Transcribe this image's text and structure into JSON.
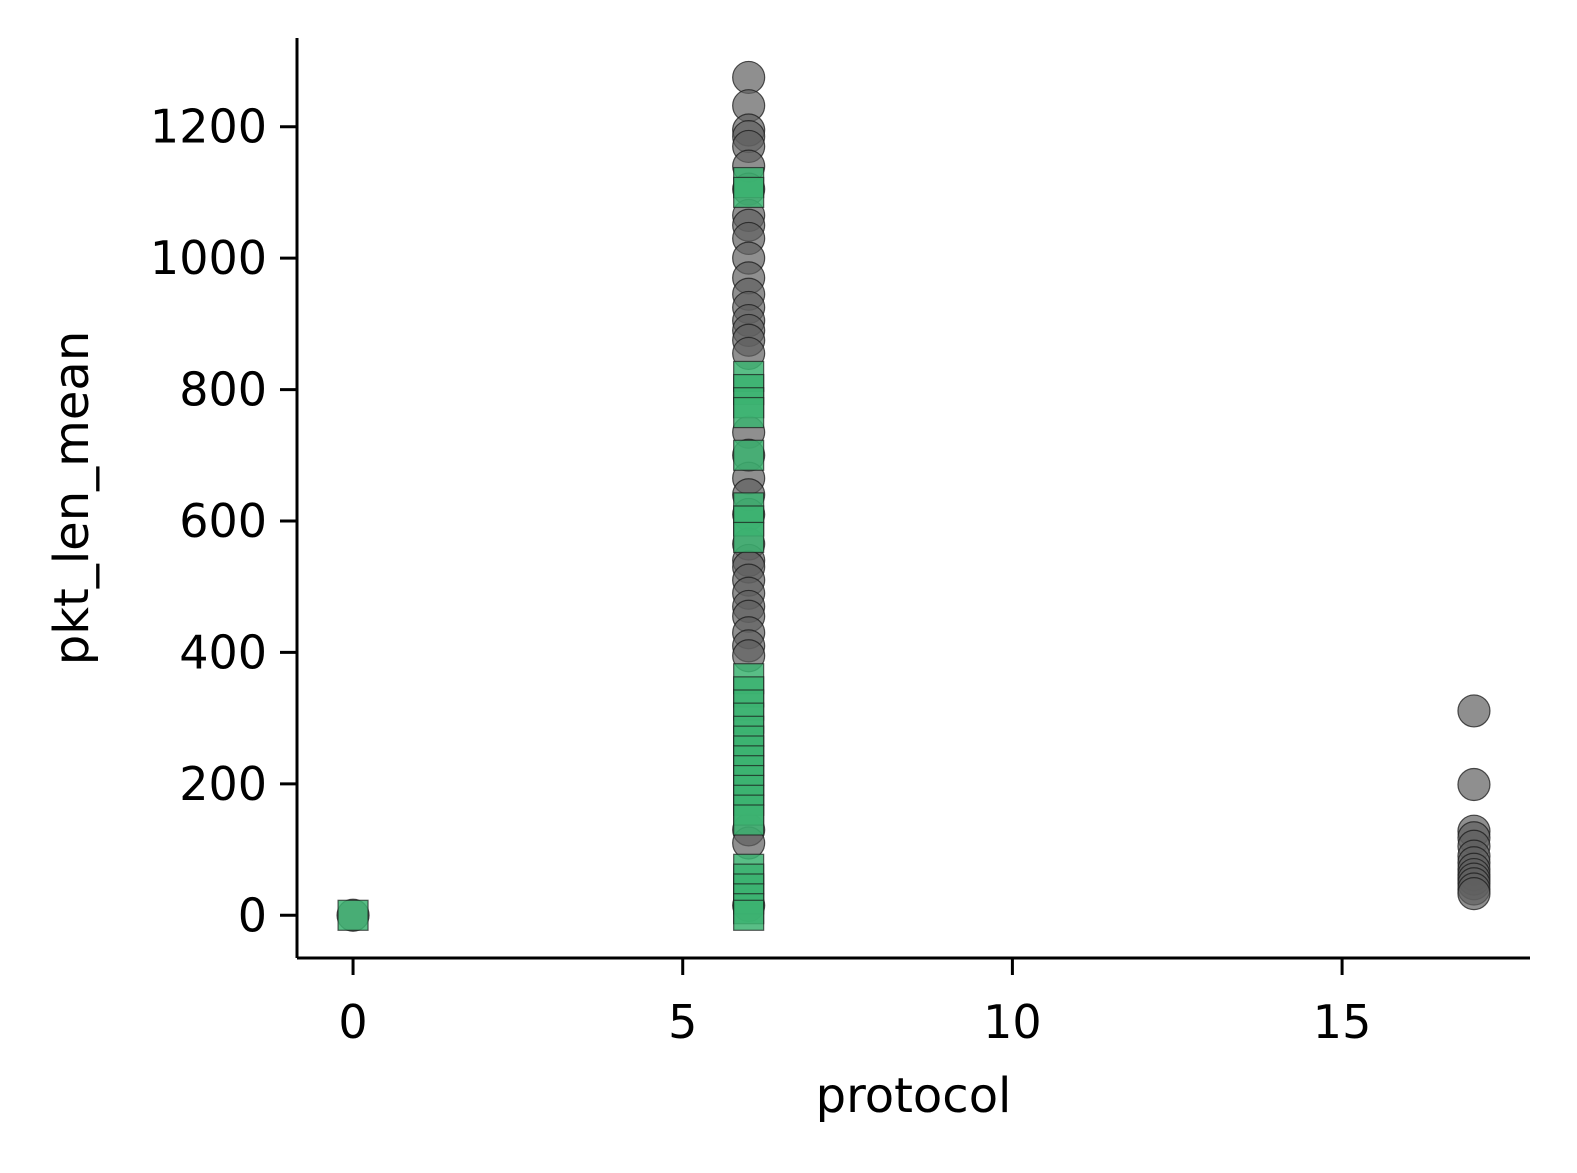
{
  "chart_data": {
    "type": "scatter",
    "xlabel": "protocol",
    "ylabel": "pkt_len_mean",
    "xlim": [
      -0.85,
      17.85
    ],
    "ylim": [
      -65,
      1335
    ],
    "x_ticks": [
      0,
      5,
      10,
      15
    ],
    "y_ticks": [
      0,
      200,
      400,
      600,
      800,
      1000,
      1200
    ],
    "grid": false,
    "legend": "none",
    "colors": {
      "circle": "#606060",
      "square": "#3cb371"
    },
    "series": [
      {
        "marker": "circle",
        "points": [
          {
            "x": 0,
            "y": 0
          },
          {
            "x": 6,
            "y": 1275
          },
          {
            "x": 6,
            "y": 1232
          },
          {
            "x": 6,
            "y": 1195
          },
          {
            "x": 6,
            "y": 1185
          },
          {
            "x": 6,
            "y": 1170
          },
          {
            "x": 6,
            "y": 1140
          },
          {
            "x": 6,
            "y": 1105
          },
          {
            "x": 6,
            "y": 1065
          },
          {
            "x": 6,
            "y": 1050
          },
          {
            "x": 6,
            "y": 1030
          },
          {
            "x": 6,
            "y": 1000
          },
          {
            "x": 6,
            "y": 970
          },
          {
            "x": 6,
            "y": 945
          },
          {
            "x": 6,
            "y": 925
          },
          {
            "x": 6,
            "y": 905
          },
          {
            "x": 6,
            "y": 890
          },
          {
            "x": 6,
            "y": 875
          },
          {
            "x": 6,
            "y": 855
          },
          {
            "x": 6,
            "y": 735
          },
          {
            "x": 6,
            "y": 700
          },
          {
            "x": 6,
            "y": 665
          },
          {
            "x": 6,
            "y": 640
          },
          {
            "x": 6,
            "y": 610
          },
          {
            "x": 6,
            "y": 565
          },
          {
            "x": 6,
            "y": 540
          },
          {
            "x": 6,
            "y": 530
          },
          {
            "x": 6,
            "y": 510
          },
          {
            "x": 6,
            "y": 490
          },
          {
            "x": 6,
            "y": 470
          },
          {
            "x": 6,
            "y": 455
          },
          {
            "x": 6,
            "y": 430
          },
          {
            "x": 6,
            "y": 410
          },
          {
            "x": 6,
            "y": 395
          },
          {
            "x": 6,
            "y": 130
          },
          {
            "x": 6,
            "y": 110
          },
          {
            "x": 6,
            "y": 15
          },
          {
            "x": 17,
            "y": 311
          },
          {
            "x": 17,
            "y": 199
          },
          {
            "x": 17,
            "y": 128
          },
          {
            "x": 17,
            "y": 118
          },
          {
            "x": 17,
            "y": 105
          },
          {
            "x": 17,
            "y": 90
          },
          {
            "x": 17,
            "y": 80
          },
          {
            "x": 17,
            "y": 70
          },
          {
            "x": 17,
            "y": 62
          },
          {
            "x": 17,
            "y": 55
          },
          {
            "x": 17,
            "y": 48
          },
          {
            "x": 17,
            "y": 40
          },
          {
            "x": 17,
            "y": 33
          }
        ]
      },
      {
        "marker": "square",
        "points": [
          {
            "x": 0,
            "y": 0
          },
          {
            "x": 6,
            "y": 1115
          },
          {
            "x": 6,
            "y": 1100
          },
          {
            "x": 6,
            "y": 820
          },
          {
            "x": 6,
            "y": 800
          },
          {
            "x": 6,
            "y": 780
          },
          {
            "x": 6,
            "y": 765
          },
          {
            "x": 6,
            "y": 700
          },
          {
            "x": 6,
            "y": 620
          },
          {
            "x": 6,
            "y": 600
          },
          {
            "x": 6,
            "y": 575
          },
          {
            "x": 6,
            "y": 360
          },
          {
            "x": 6,
            "y": 340
          },
          {
            "x": 6,
            "y": 320
          },
          {
            "x": 6,
            "y": 300
          },
          {
            "x": 6,
            "y": 280
          },
          {
            "x": 6,
            "y": 265
          },
          {
            "x": 6,
            "y": 250
          },
          {
            "x": 6,
            "y": 235
          },
          {
            "x": 6,
            "y": 220
          },
          {
            "x": 6,
            "y": 205
          },
          {
            "x": 6,
            "y": 190
          },
          {
            "x": 6,
            "y": 175
          },
          {
            "x": 6,
            "y": 160
          },
          {
            "x": 6,
            "y": 145
          },
          {
            "x": 6,
            "y": 70
          },
          {
            "x": 6,
            "y": 55
          },
          {
            "x": 6,
            "y": 40
          },
          {
            "x": 6,
            "y": 25
          },
          {
            "x": 6,
            "y": 10
          },
          {
            "x": 6,
            "y": 0
          }
        ]
      }
    ]
  }
}
